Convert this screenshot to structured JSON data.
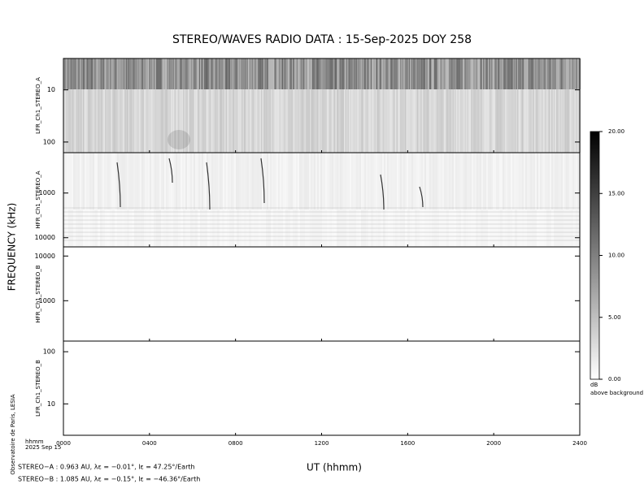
{
  "chart_data": {
    "type": "spectrogram",
    "title": "STEREO/WAVES  RADIO  DATA : 15-Sep-2025  DOY 258",
    "ylabel": "FREQUENCY (kHz)",
    "xlabel": "UT (hhmm)",
    "xlim": [
      0,
      2400
    ],
    "xticks": [
      {
        "value": 0,
        "label": "0000"
      },
      {
        "value": 400,
        "label": "0400"
      },
      {
        "value": 800,
        "label": "0800"
      },
      {
        "value": 1200,
        "label": "1200"
      },
      {
        "value": 1600,
        "label": "1600"
      },
      {
        "value": 2000,
        "label": "2000"
      },
      {
        "value": 2400,
        "label": "2400"
      }
    ],
    "panels": [
      {
        "name": "LFR_Ch1_STEREO_A",
        "log": true,
        "inverted": true,
        "ylim": [
          2.5,
          160
        ],
        "yticks": [
          10,
          100
        ]
      },
      {
        "name": "HFR_Ch1_STEREO_A",
        "log": true,
        "inverted": true,
        "ylim": [
          125,
          16025
        ],
        "yticks": [
          1000,
          10000
        ]
      },
      {
        "name": "HFR_Ch1_STEREO_B",
        "log": true,
        "inverted": false,
        "ylim": [
          125,
          16025
        ],
        "yticks": [
          1000,
          10000
        ]
      },
      {
        "name": "LFR_Ch1_STEREO_B",
        "log": true,
        "inverted": false,
        "ylim": [
          2.5,
          160
        ],
        "yticks": [
          10,
          100
        ]
      }
    ],
    "colorbar": {
      "ylim": [
        0,
        20
      ],
      "yticks": [
        {
          "value": 0,
          "label": "0.00"
        },
        {
          "value": 5,
          "label": "5.00"
        },
        {
          "value": 10,
          "label": "10.00"
        },
        {
          "value": 15,
          "label": "15.00"
        },
        {
          "value": 20,
          "label": "20.00"
        }
      ],
      "unit": "dB",
      "caption": "above background"
    },
    "time_unit": "hhmm",
    "date": "2025 Sep 15",
    "credit": "Observatoire de Paris, LESIA",
    "spacecraft": [
      "STEREO−A : 0.963 AU, λε = −0.01°, lε = 47.25°/Earth",
      "STEREO−B : 1.085 AU, λε = −0.15°, lε = −46.36°/Earth"
    ]
  }
}
